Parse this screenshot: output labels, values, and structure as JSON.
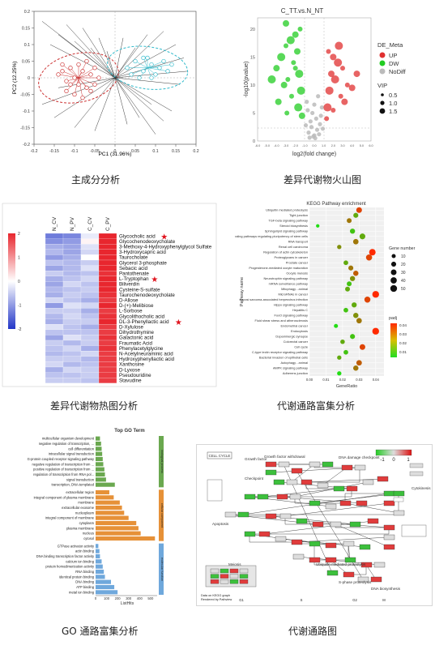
{
  "captions": {
    "pca": "主成分分析",
    "volcano": "差异代谢物火山图",
    "heatmap": "差异代谢物热图分析",
    "kegg": "代谢通路富集分析",
    "go": "GO 通路富集分析",
    "pathway": "代谢通路图"
  },
  "colors": {
    "red": "#e03030",
    "green": "#22cc22",
    "gray": "#bbbbbb",
    "heat_high": "#e8262e",
    "heat_low": "#2236c8",
    "go_bp": "#6aa84f",
    "go_cc": "#e69138",
    "go_mf": "#6fa8dc"
  },
  "chart_data": [
    {
      "type": "scatter",
      "id": "pca",
      "xlabel": "PC1 (31.96%)",
      "ylabel": "PC2 (12.25%)",
      "xlim": [
        -0.2,
        0.2
      ],
      "ylim": [
        -0.2,
        0.2
      ],
      "x_ticks": [
        "-0.2",
        "-0.15",
        "-0.1",
        "-0.05",
        "0",
        "0.05",
        "0.1",
        "0.15",
        "0.2"
      ],
      "y_ticks": [
        "0.2",
        "0.15",
        "0.1",
        "0.05",
        "0",
        "-0.05",
        "-0.1",
        "-0.15",
        "-0.2"
      ],
      "groups": [
        {
          "color": "#cc3333",
          "center": [
            -0.09,
            0.0
          ],
          "points": [
            [
              -0.14,
              0.01
            ],
            [
              -0.13,
              0.02
            ],
            [
              -0.12,
              -0.01
            ],
            [
              -0.11,
              0.03
            ],
            [
              -0.1,
              0.0
            ],
            [
              -0.09,
              -0.02
            ],
            [
              -0.08,
              0.02
            ],
            [
              -0.07,
              -0.03
            ],
            [
              -0.06,
              0.01
            ],
            [
              -0.05,
              0.03
            ],
            [
              -0.12,
              -0.04
            ],
            [
              -0.1,
              -0.05
            ],
            [
              -0.08,
              -0.06
            ],
            [
              -0.06,
              -0.04
            ],
            [
              -0.13,
              0.04
            ],
            [
              -0.04,
              0.0
            ],
            [
              -0.11,
              -0.02
            ],
            [
              -0.09,
              0.04
            ],
            [
              -0.07,
              0.05
            ],
            [
              -0.05,
              -0.02
            ]
          ]
        },
        {
          "color": "#33bbcc",
          "center": [
            0.08,
            0.03
          ],
          "points": [
            [
              0.03,
              0.03
            ],
            [
              0.05,
              0.05
            ],
            [
              0.07,
              0.02
            ],
            [
              0.09,
              0.04
            ],
            [
              0.11,
              0.03
            ],
            [
              0.13,
              0.02
            ],
            [
              0.06,
              0.0
            ],
            [
              0.08,
              0.06
            ],
            [
              0.1,
              0.01
            ],
            [
              0.12,
              0.05
            ],
            [
              0.04,
              0.01
            ],
            [
              0.14,
              0.04
            ],
            [
              0.09,
              0.0
            ],
            [
              0.07,
              0.06
            ]
          ]
        }
      ]
    },
    {
      "type": "scatter",
      "id": "volcano",
      "title": "C_TT.vs.N_NT",
      "xlabel": "log2(fold change)",
      "ylabel": "-log10(pvalue)",
      "xlim": [
        -6,
        6
      ],
      "ylim": [
        0,
        22
      ],
      "x_ticks": [
        "-6.0",
        "-5.0",
        "-4.0",
        "-3.0",
        "-2.0",
        "-1.0",
        "0.0",
        "1.0",
        "2.0",
        "3.0",
        "4.0",
        "5.0",
        "6.0"
      ],
      "y_ticks": [
        "20",
        "15",
        "10",
        "5",
        "0"
      ],
      "legend": {
        "title": "DE_Meta",
        "entries": [
          "UP",
          "DW",
          "NoDiff"
        ],
        "size_title": "VIP",
        "sizes": [
          "0.5",
          "1.0",
          "1.5"
        ]
      },
      "up": [
        [
          1.5,
          16
        ],
        [
          2,
          15
        ],
        [
          2.5,
          14
        ],
        [
          3,
          13
        ],
        [
          1.8,
          12
        ],
        [
          2.2,
          11
        ],
        [
          3.5,
          10
        ],
        [
          4,
          9.5
        ],
        [
          1.6,
          9
        ],
        [
          2.8,
          8
        ],
        [
          3.2,
          7
        ],
        [
          1.4,
          6
        ],
        [
          2,
          5.5
        ],
        [
          4.5,
          12
        ],
        [
          2.6,
          17
        ],
        [
          1.3,
          4
        ]
      ],
      "down": [
        [
          -1.5,
          20
        ],
        [
          -2,
          19
        ],
        [
          -2.5,
          18
        ],
        [
          -3,
          17
        ],
        [
          -1.8,
          16
        ],
        [
          -3.5,
          15
        ],
        [
          -2.2,
          14
        ],
        [
          -4,
          13
        ],
        [
          -1.6,
          12
        ],
        [
          -2.8,
          11
        ],
        [
          -3.2,
          10
        ],
        [
          -1.4,
          9
        ],
        [
          -2.4,
          8
        ],
        [
          -3.8,
          7
        ],
        [
          -1.7,
          6
        ],
        [
          -2.9,
          5
        ],
        [
          -1.3,
          4.5
        ],
        [
          -4.5,
          11
        ],
        [
          -2,
          13
        ],
        [
          -3,
          21
        ]
      ],
      "nodiff": [
        [
          0,
          1
        ],
        [
          0.3,
          2
        ],
        [
          -0.3,
          2.5
        ],
        [
          0.6,
          3
        ],
        [
          -0.6,
          1.5
        ],
        [
          0.2,
          4
        ],
        [
          -0.2,
          5
        ],
        [
          0.8,
          6
        ],
        [
          -0.8,
          7
        ],
        [
          0.4,
          8
        ],
        [
          -0.4,
          3.5
        ],
        [
          0.1,
          0.5
        ],
        [
          -0.1,
          0.8
        ],
        [
          0.5,
          1.2
        ],
        [
          -0.5,
          0.6
        ],
        [
          0.9,
          2.2
        ],
        [
          -0.9,
          2.8
        ],
        [
          0.7,
          4.5
        ],
        [
          -0.7,
          5.5
        ],
        [
          0,
          6.5
        ]
      ]
    },
    {
      "type": "heatmap",
      "id": "heatmap",
      "columns": [
        "N_CV",
        "N_PV",
        "C_CV",
        "C_PV"
      ],
      "scale_ticks": [
        "2",
        "1",
        "0",
        "-1",
        "-2"
      ],
      "rows": [
        "Glycocholic acid",
        "Glycochenodeoxycholate",
        "3-Methoxy-4-Hydroxyphenylglycol Sulfate",
        "3-Hydroxycapric acid",
        "Taurocholate",
        "Glycerol 3-phosphate",
        "Sebacic acid",
        "Pantothenate",
        "L-Tryptophan",
        "Biliverdin",
        "Cysteine-S-sulfate",
        "Taurochenodeoxycholate",
        "D-Allose",
        "D-(+)-Melibiose",
        "L-Sorbose",
        "Glycolithocholic acid",
        "DL-3-Phenyllactic acid",
        "D-Xylulose",
        "Dihydrothymine",
        "Galactonic acid",
        "Fraumatic Acid",
        "Phenylacetylglycine",
        "N-Acetylneuraminic acid",
        "Hydroxyphenyllactic acid",
        "Xanthosine",
        "D-Lyxose",
        "Pseudouridine",
        "Stavudine"
      ],
      "starred": [
        "Glycocholic acid",
        "L-Tryptophan",
        "DL-3-Phenyllactic acid"
      ],
      "values": [
        [
          -1.3,
          -1.2,
          -0.2,
          2
        ],
        [
          -1.1,
          -1.0,
          0.1,
          2
        ],
        [
          -0.8,
          -0.9,
          -0.3,
          2
        ],
        [
          -0.7,
          -0.9,
          -0.4,
          2
        ],
        [
          -1.0,
          -0.8,
          0.0,
          2
        ],
        [
          -0.6,
          -0.7,
          -0.5,
          2
        ],
        [
          -0.9,
          -0.7,
          -0.3,
          2
        ],
        [
          -0.5,
          -0.7,
          -0.6,
          1.9
        ],
        [
          -0.8,
          -0.6,
          -0.4,
          2
        ],
        [
          -0.9,
          -0.4,
          -0.6,
          2
        ],
        [
          -0.7,
          -0.6,
          -0.5,
          2
        ],
        [
          -0.8,
          -0.5,
          -0.6,
          1.9
        ],
        [
          -0.4,
          -0.6,
          -0.8,
          1.8
        ],
        [
          -1.0,
          -0.3,
          -0.4,
          2
        ],
        [
          -0.5,
          -0.5,
          -0.8,
          1.8
        ],
        [
          -0.7,
          -0.4,
          -0.6,
          1.9
        ],
        [
          -0.8,
          -0.5,
          -0.5,
          2
        ],
        [
          -0.3,
          -0.6,
          -0.8,
          1.8
        ],
        [
          -0.6,
          -0.6,
          -0.6,
          1.8
        ],
        [
          -0.9,
          -0.3,
          -0.5,
          1.9
        ],
        [
          -0.5,
          -0.7,
          -0.5,
          1.8
        ],
        [
          -0.6,
          -0.4,
          -0.8,
          1.9
        ],
        [
          -0.7,
          -0.6,
          -0.4,
          1.8
        ],
        [
          -0.5,
          -0.5,
          -0.7,
          1.8
        ],
        [
          -0.4,
          -0.7,
          -0.6,
          1.8
        ],
        [
          -0.8,
          -0.4,
          -0.5,
          1.8
        ],
        [
          -0.6,
          -0.6,
          -0.5,
          1.8
        ],
        [
          -0.5,
          -0.5,
          -0.6,
          1.8
        ]
      ]
    },
    {
      "type": "scatter",
      "id": "kegg",
      "title": "KEGG Pathway enrichment",
      "xlabel": "GeneRatio",
      "ylabel": "Pathway name",
      "xlim": [
        0.0,
        0.045
      ],
      "x_ticks": [
        "0.00",
        "0.01",
        "0.02",
        "0.03",
        "0.04"
      ],
      "size_legend": {
        "title": "Gene number",
        "entries": [
          "10",
          "20",
          "30",
          "40",
          "50"
        ]
      },
      "color_legend": {
        "title": "padj",
        "entries": [
          "0.04",
          "0.03",
          "0.02",
          "0.01"
        ]
      },
      "pathways": [
        "Ubiquitin mediated proteolysis",
        "Tight junction",
        "TGF-beta signaling pathway",
        "Steroid biosynthesis",
        "Sphingolipid signaling pathway",
        "Signaling pathways regulating pluripotency of stem cells",
        "RNA transport",
        "Renal cell carcinoma",
        "Regulation of actin cytoskeleton",
        "Proteoglycans in cancer",
        "Prostate cancer",
        "Progesterone-mediated oocyte maturation",
        "Oocyte meiosis",
        "Neurotrophin signaling pathway",
        "mRNA surveillance pathway",
        "Mitophagy - animal",
        "MicroRNAs in cancer",
        "Kaposi sarcoma-associated herpesvirus infection",
        "Hippo signaling pathway",
        "Hepatitis C",
        "FoxO signaling pathway",
        "Fluid shear stress and atherosclerosis",
        "Endometrial cancer",
        "Endocytosis",
        "Dopaminergic synapse",
        "Colorectal cancer",
        "Cell cycle",
        "C-type lectin receptor signaling pathway",
        "Bacterial invasion of epithelial cells",
        "Autophagy - animal",
        "AMPK signaling pathway",
        "Adherens junction"
      ],
      "ratio": [
        0.03,
        0.028,
        0.024,
        0.005,
        0.026,
        0.032,
        0.028,
        0.018,
        0.038,
        0.036,
        0.022,
        0.025,
        0.028,
        0.026,
        0.024,
        0.023,
        0.04,
        0.035,
        0.027,
        0.022,
        0.028,
        0.03,
        0.016,
        0.04,
        0.026,
        0.02,
        0.032,
        0.022,
        0.018,
        0.03,
        0.028,
        0.018
      ],
      "padj": [
        0.01,
        0.03,
        0.02,
        0.04,
        0.035,
        0.03,
        0.02,
        0.025,
        0.005,
        0.01,
        0.03,
        0.02,
        0.015,
        0.025,
        0.035,
        0.03,
        0.005,
        0.01,
        0.03,
        0.035,
        0.025,
        0.02,
        0.04,
        0.005,
        0.035,
        0.03,
        0.01,
        0.035,
        0.03,
        0.015,
        0.02,
        0.04
      ],
      "genes": [
        30,
        20,
        18,
        5,
        22,
        32,
        26,
        12,
        45,
        38,
        16,
        20,
        24,
        22,
        18,
        18,
        50,
        36,
        22,
        16,
        24,
        26,
        10,
        50,
        20,
        14,
        30,
        16,
        12,
        28,
        24,
        12
      ]
    },
    {
      "type": "bar",
      "id": "go",
      "title": "Top GO Term",
      "xlabel": "ListHits",
      "x_ticks": [
        "0",
        "100",
        "200",
        "300",
        "400",
        "500"
      ],
      "xlim": [
        0,
        560
      ],
      "groups": [
        "biological process",
        "cellular component",
        "molecular function"
      ],
      "categories": [
        "multicellular organism development",
        "negative regulation of transcription, ...",
        "cell differentiation",
        "intracellular signal transduction",
        "G-protein coupled receptor signaling pathway",
        "negative regulation of transcription from ...",
        "positive regulation of transcription from ...",
        "regulation of transcription from RNA pol...",
        "signal transduction",
        "transcription, DNA-templated",
        "extracellular region",
        "integral component of plasma membrane",
        "membrane",
        "extracellular exosome",
        "nucleoplasm",
        "integral component of membrane",
        "cytoplasm",
        "plasma membrane",
        "nucleus",
        "cytosol",
        "GTPase activator activity",
        "actin binding",
        "DNA binding transcription factor activity",
        "calcium ion binding",
        "protein homodimerization activity",
        "RNA binding",
        "identical protein binding",
        "DNA binding",
        "ATP binding",
        "metal ion binding"
      ],
      "group_of": [
        0,
        0,
        0,
        0,
        0,
        0,
        0,
        0,
        0,
        0,
        1,
        1,
        1,
        1,
        1,
        1,
        1,
        1,
        1,
        1,
        2,
        2,
        2,
        2,
        2,
        2,
        2,
        2,
        2,
        2
      ],
      "values": [
        40,
        50,
        55,
        60,
        65,
        70,
        80,
        85,
        95,
        175,
        125,
        165,
        220,
        240,
        260,
        300,
        370,
        390,
        410,
        540,
        25,
        35,
        40,
        55,
        65,
        75,
        85,
        140,
        170,
        200
      ]
    }
  ],
  "pathway_diagram": {
    "title_box": "CELL CYCLE",
    "scale_ticks": [
      "-1",
      "0",
      "1"
    ],
    "labels": [
      "Growth factor",
      "Growth factor withdrawal",
      "Checkpoint",
      "DNA damage checkpoint",
      "Ubiquitin mediated proteolysis",
      "Cytokinesis",
      "Meiosis",
      "S-phase proteolysis",
      "DNA biosynthesis",
      "Apoptosis"
    ],
    "phases": [
      "G1",
      "S",
      "G2",
      "M"
    ],
    "footer": "Data on KEGG graph\nRendered by Pathview"
  }
}
